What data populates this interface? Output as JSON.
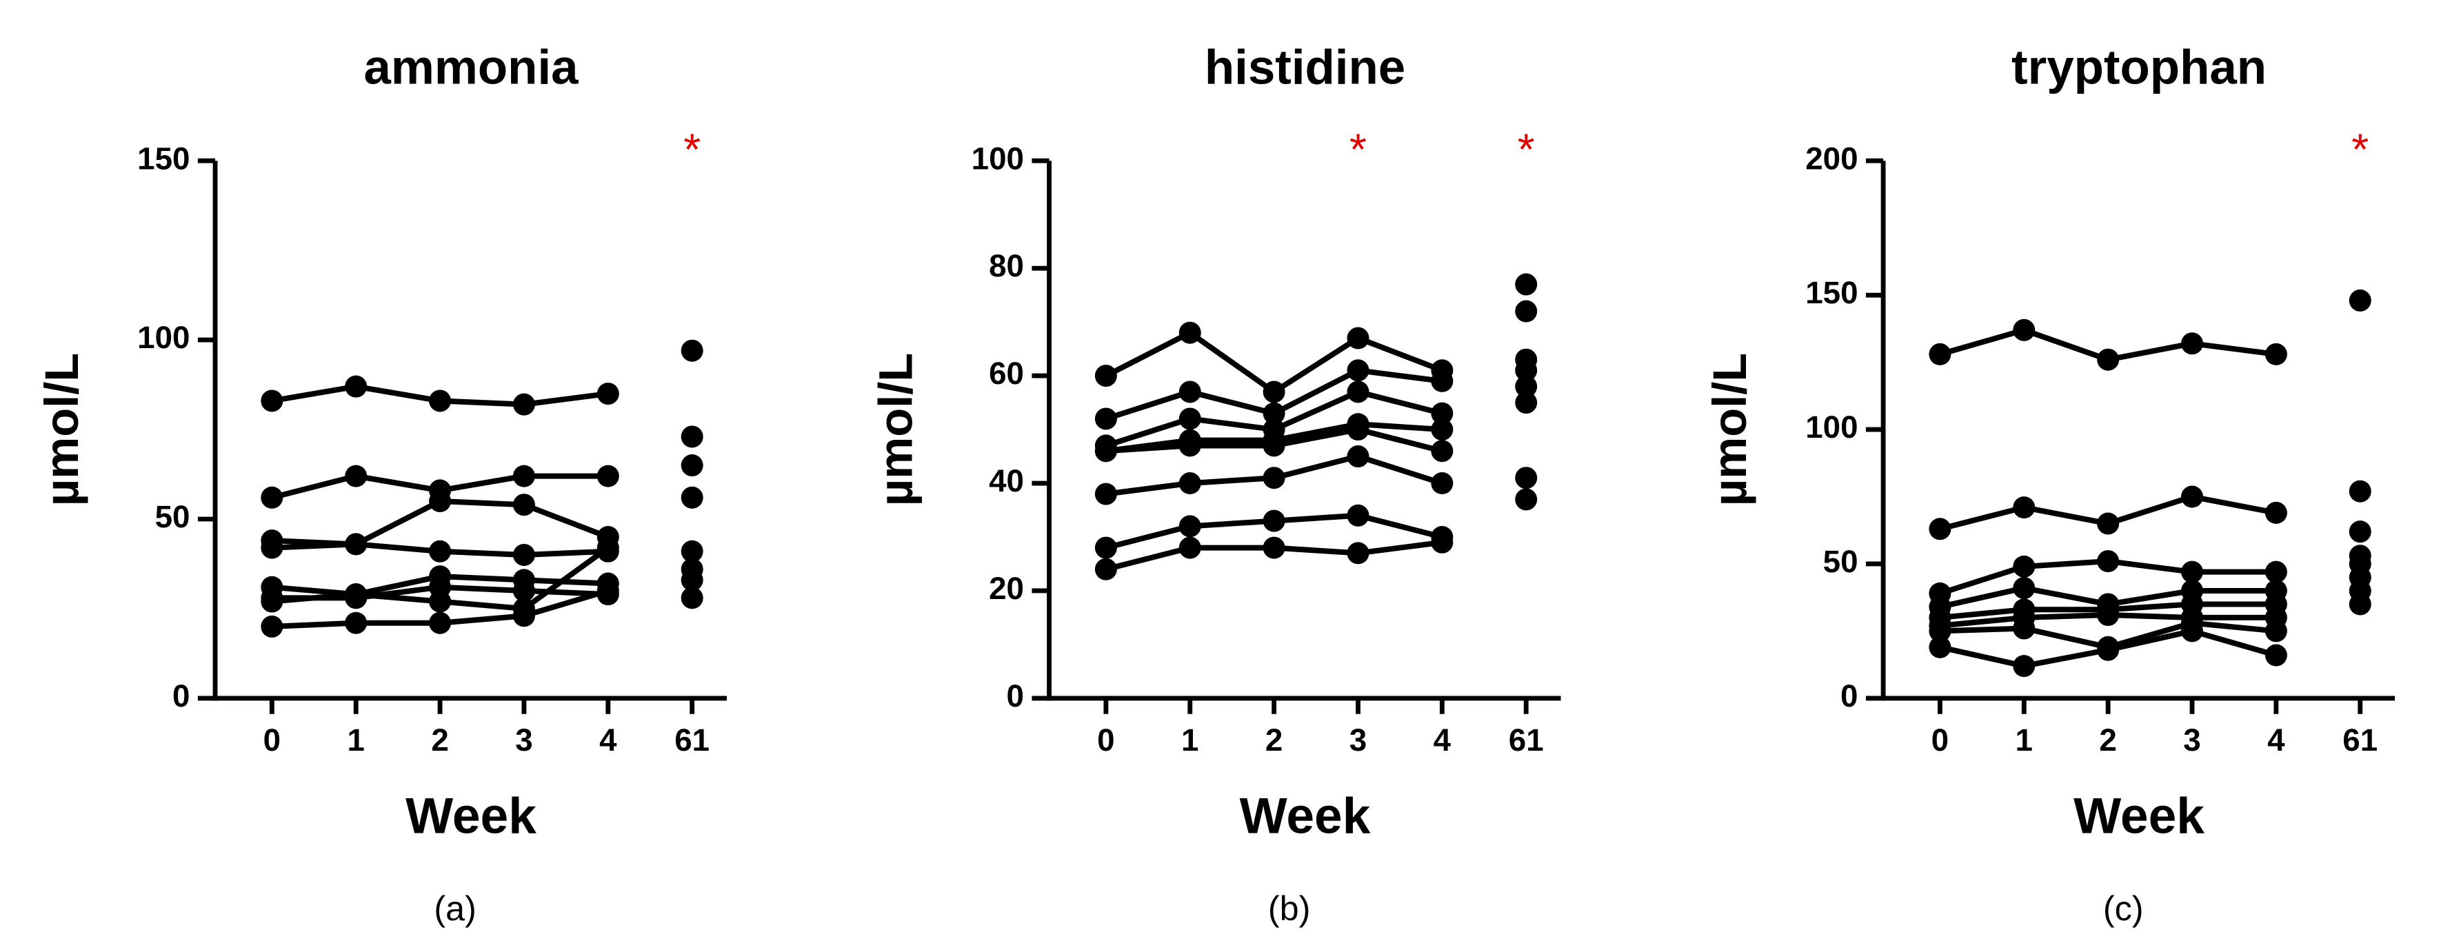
{
  "chart_data": [
    {
      "type": "line",
      "title": "ammonia",
      "x_label": "Week",
      "y_label": "µmol/L",
      "caption": "(a)",
      "categories": [
        "0",
        "1",
        "2",
        "3",
        "4",
        "61"
      ],
      "color": "#000000",
      "ylim": [
        0,
        150
      ],
      "yticks": [
        0,
        50,
        100,
        150
      ],
      "annotations": [
        {
          "text": "*",
          "x": "61",
          "color": "#e00000"
        }
      ],
      "series": [
        {
          "values": [
            83,
            87,
            83,
            82,
            85,
            97
          ]
        },
        {
          "values": [
            56,
            62,
            58,
            62,
            62,
            73
          ]
        },
        {
          "values": [
            44,
            43,
            41,
            40,
            41,
            65
          ]
        },
        {
          "values": [
            42,
            43,
            55,
            54,
            45,
            56
          ]
        },
        {
          "values": [
            31,
            29,
            34,
            33,
            32,
            41
          ]
        },
        {
          "values": [
            28,
            28,
            31,
            30,
            29,
            36
          ]
        },
        {
          "values": [
            27,
            29,
            27,
            25,
            42,
            33
          ]
        },
        {
          "values": [
            20,
            21,
            21,
            23,
            30,
            28
          ]
        }
      ]
    },
    {
      "type": "line",
      "title": "histidine",
      "x_label": "Week",
      "y_label": "µmol/L",
      "caption": "(b)",
      "categories": [
        "0",
        "1",
        "2",
        "3",
        "4",
        "61"
      ],
      "color": "#000000",
      "ylim": [
        0,
        100
      ],
      "yticks": [
        0,
        20,
        40,
        60,
        80,
        100
      ],
      "annotations": [
        {
          "text": "*",
          "x": "3",
          "color": "#e00000"
        },
        {
          "text": "*",
          "x": "61",
          "color": "#e00000"
        }
      ],
      "series": [
        {
          "values": [
            60,
            68,
            57,
            67,
            61,
            77
          ]
        },
        {
          "values": [
            52,
            57,
            53,
            61,
            59,
            72
          ]
        },
        {
          "values": [
            47,
            52,
            50,
            57,
            53,
            63
          ]
        },
        {
          "values": [
            46,
            48,
            48,
            51,
            50,
            61
          ]
        },
        {
          "values": [
            46,
            47,
            47,
            50,
            46,
            58
          ]
        },
        {
          "values": [
            38,
            40,
            41,
            45,
            40,
            55
          ]
        },
        {
          "values": [
            28,
            32,
            33,
            34,
            30,
            41
          ]
        },
        {
          "values": [
            24,
            28,
            28,
            27,
            29,
            37
          ]
        }
      ]
    },
    {
      "type": "line",
      "title": "tryptophan",
      "x_label": "Week",
      "y_label": "µmol/L",
      "caption": "(c)",
      "categories": [
        "0",
        "1",
        "2",
        "3",
        "4",
        "61"
      ],
      "color": "#000000",
      "ylim": [
        0,
        200
      ],
      "yticks": [
        0,
        50,
        100,
        150,
        200
      ],
      "annotations": [
        {
          "text": "*",
          "x": "61",
          "color": "#e00000"
        }
      ],
      "series": [
        {
          "values": [
            128,
            137,
            126,
            132,
            128,
            148
          ]
        },
        {
          "values": [
            63,
            71,
            65,
            75,
            69,
            77
          ]
        },
        {
          "values": [
            39,
            49,
            51,
            47,
            47,
            62
          ]
        },
        {
          "values": [
            34,
            41,
            35,
            40,
            40,
            53
          ]
        },
        {
          "values": [
            30,
            33,
            33,
            35,
            35,
            50
          ]
        },
        {
          "values": [
            27,
            30,
            31,
            30,
            30,
            45
          ]
        },
        {
          "values": [
            25,
            26,
            19,
            28,
            25,
            40
          ]
        },
        {
          "values": [
            19,
            12,
            18,
            25,
            16,
            35
          ]
        }
      ]
    }
  ]
}
